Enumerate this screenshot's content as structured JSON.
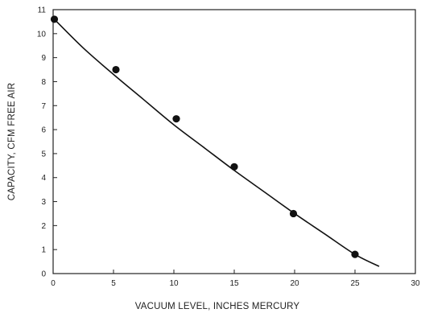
{
  "chart_data": {
    "type": "scatter",
    "title": "",
    "xlabel": "VACUUM LEVEL, INCHES MERCURY",
    "ylabel": "CAPACITY, CFM FREE AIR",
    "xlim": [
      0,
      30
    ],
    "ylim": [
      0,
      11
    ],
    "xticks": [
      0,
      5,
      10,
      15,
      20,
      25,
      30
    ],
    "yticks": [
      0,
      1,
      2,
      3,
      4,
      5,
      6,
      7,
      8,
      9,
      10,
      11
    ],
    "grid": false,
    "legend": "none",
    "series": [
      {
        "kind": "points",
        "x": [
          0.1,
          5.2,
          10.2,
          15.0,
          19.9,
          25.0
        ],
        "y": [
          10.6,
          8.5,
          6.45,
          4.45,
          2.5,
          0.8
        ]
      },
      {
        "kind": "fit-curve",
        "x": [
          0.1,
          2.5,
          5,
          7.5,
          10,
          12.5,
          15,
          17.5,
          20,
          22.5,
          25,
          27
        ],
        "y": [
          10.6,
          9.4,
          8.3,
          7.25,
          6.2,
          5.25,
          4.3,
          3.4,
          2.5,
          1.65,
          0.8,
          0.3
        ]
      }
    ],
    "colors": {
      "ink": "#111111",
      "frame": "#222222"
    }
  }
}
